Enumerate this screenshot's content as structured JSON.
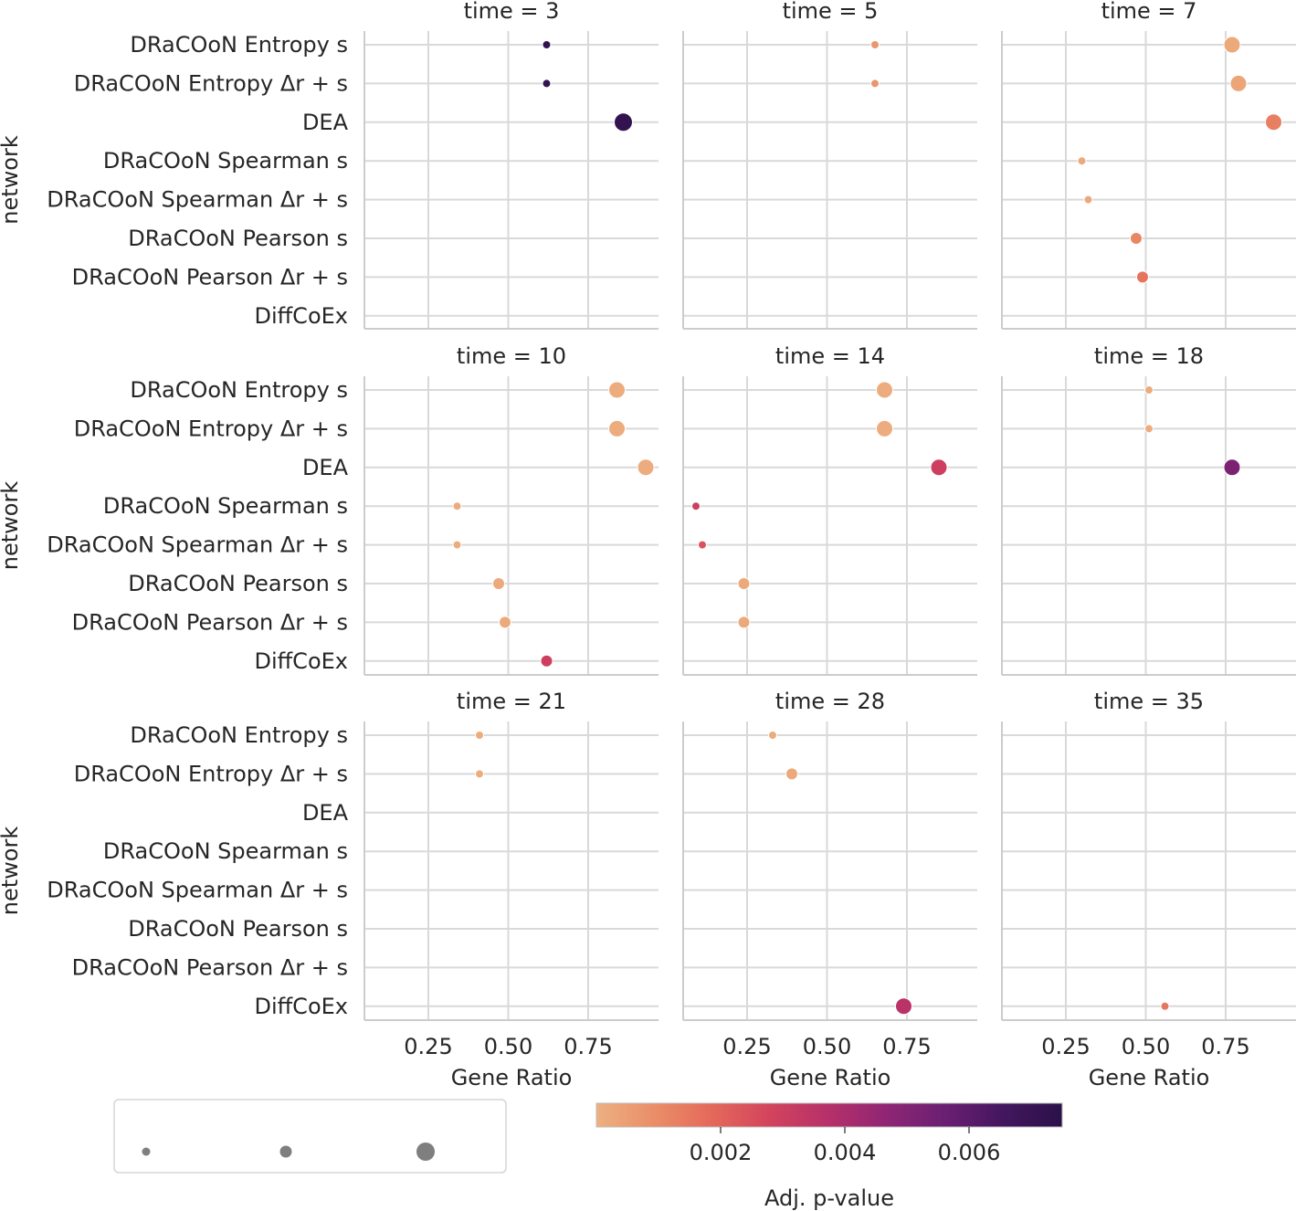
{
  "chart_data": {
    "type": "scatter",
    "subtype": "dot-plot facet grid",
    "xlabel": "Gene Ratio",
    "ylabel": "network",
    "x_ticks": [
      "0.25",
      "0.50",
      "0.75"
    ],
    "xlim": [
      0.05,
      0.97
    ],
    "categories": [
      "DRaCOoN Entropy s",
      "DRaCOoN Entropy Δr + s",
      "DEA",
      "DRaCOoN Spearman s",
      "DRaCOoN Spearman Δr + s",
      "DRaCOoN Pearson s",
      "DRaCOoN Pearson Δr + s",
      "DiffCoEx"
    ],
    "colorbar": {
      "label": "Adj. p-value",
      "ticks": [
        "0.002",
        "0.004",
        "0.006"
      ],
      "tick_values": [
        0.002,
        0.004,
        0.006
      ],
      "range": [
        0.0,
        0.0075
      ],
      "colormap": [
        "#edb081",
        "#ea8e67",
        "#e4685a",
        "#d2435d",
        "#b5306a",
        "#8f2574",
        "#6a1f72",
        "#43165e",
        "#2a1149"
      ]
    },
    "size_legend_marker_sizes": [
      1,
      2,
      4
    ],
    "panels": [
      {
        "title": "time = 3",
        "points": [
          {
            "network": 0,
            "gene_ratio": 0.62,
            "padj": 0.0072,
            "size": 1
          },
          {
            "network": 1,
            "gene_ratio": 0.62,
            "padj": 0.0072,
            "size": 1
          },
          {
            "network": 2,
            "gene_ratio": 0.86,
            "padj": 0.0072,
            "size": 4
          }
        ]
      },
      {
        "title": "time = 5",
        "points": [
          {
            "network": 0,
            "gene_ratio": 0.65,
            "padj": 0.0007,
            "size": 1
          },
          {
            "network": 1,
            "gene_ratio": 0.65,
            "padj": 0.0007,
            "size": 1
          }
        ]
      },
      {
        "title": "time = 7",
        "points": [
          {
            "network": 0,
            "gene_ratio": 0.77,
            "padj": 0.0002,
            "size": 3
          },
          {
            "network": 1,
            "gene_ratio": 0.79,
            "padj": 0.0003,
            "size": 3
          },
          {
            "network": 2,
            "gene_ratio": 0.9,
            "padj": 0.0013,
            "size": 3
          },
          {
            "network": 3,
            "gene_ratio": 0.3,
            "padj": 0.0002,
            "size": 1
          },
          {
            "network": 4,
            "gene_ratio": 0.32,
            "padj": 0.0002,
            "size": 1
          },
          {
            "network": 5,
            "gene_ratio": 0.47,
            "padj": 0.0011,
            "size": 2
          },
          {
            "network": 6,
            "gene_ratio": 0.49,
            "padj": 0.0016,
            "size": 2
          }
        ]
      },
      {
        "title": "time = 10",
        "points": [
          {
            "network": 0,
            "gene_ratio": 0.84,
            "padj": 0.0001,
            "size": 3
          },
          {
            "network": 1,
            "gene_ratio": 0.84,
            "padj": 0.0001,
            "size": 3
          },
          {
            "network": 2,
            "gene_ratio": 0.93,
            "padj": 0.0001,
            "size": 3
          },
          {
            "network": 3,
            "gene_ratio": 0.34,
            "padj": 0.0001,
            "size": 1
          },
          {
            "network": 4,
            "gene_ratio": 0.34,
            "padj": 0.0001,
            "size": 1
          },
          {
            "network": 5,
            "gene_ratio": 0.47,
            "padj": 0.0002,
            "size": 2
          },
          {
            "network": 6,
            "gene_ratio": 0.49,
            "padj": 0.0002,
            "size": 2
          },
          {
            "network": 7,
            "gene_ratio": 0.62,
            "padj": 0.003,
            "size": 2
          }
        ]
      },
      {
        "title": "time = 14",
        "points": [
          {
            "network": 0,
            "gene_ratio": 0.68,
            "padj": 0.0001,
            "size": 3
          },
          {
            "network": 1,
            "gene_ratio": 0.68,
            "padj": 0.0001,
            "size": 3
          },
          {
            "network": 2,
            "gene_ratio": 0.85,
            "padj": 0.003,
            "size": 3
          },
          {
            "network": 3,
            "gene_ratio": 0.09,
            "padj": 0.003,
            "size": 1
          },
          {
            "network": 4,
            "gene_ratio": 0.11,
            "padj": 0.0024,
            "size": 1
          },
          {
            "network": 5,
            "gene_ratio": 0.24,
            "padj": 0.0002,
            "size": 2
          },
          {
            "network": 6,
            "gene_ratio": 0.24,
            "padj": 0.0002,
            "size": 2
          }
        ]
      },
      {
        "title": "time = 18",
        "points": [
          {
            "network": 0,
            "gene_ratio": 0.51,
            "padj": 0.0001,
            "size": 1
          },
          {
            "network": 1,
            "gene_ratio": 0.51,
            "padj": 0.0001,
            "size": 1
          },
          {
            "network": 2,
            "gene_ratio": 0.77,
            "padj": 0.0052,
            "size": 3
          }
        ]
      },
      {
        "title": "time = 21",
        "points": [
          {
            "network": 0,
            "gene_ratio": 0.41,
            "padj": 0.0001,
            "size": 1
          },
          {
            "network": 1,
            "gene_ratio": 0.41,
            "padj": 0.0001,
            "size": 1
          }
        ]
      },
      {
        "title": "time = 28",
        "points": [
          {
            "network": 0,
            "gene_ratio": 0.33,
            "padj": 0.0001,
            "size": 1
          },
          {
            "network": 1,
            "gene_ratio": 0.39,
            "padj": 0.0002,
            "size": 2
          },
          {
            "network": 7,
            "gene_ratio": 0.74,
            "padj": 0.0036,
            "size": 3
          }
        ]
      },
      {
        "title": "time = 35",
        "points": [
          {
            "network": 7,
            "gene_ratio": 0.56,
            "padj": 0.0015,
            "size": 1
          }
        ]
      }
    ]
  }
}
